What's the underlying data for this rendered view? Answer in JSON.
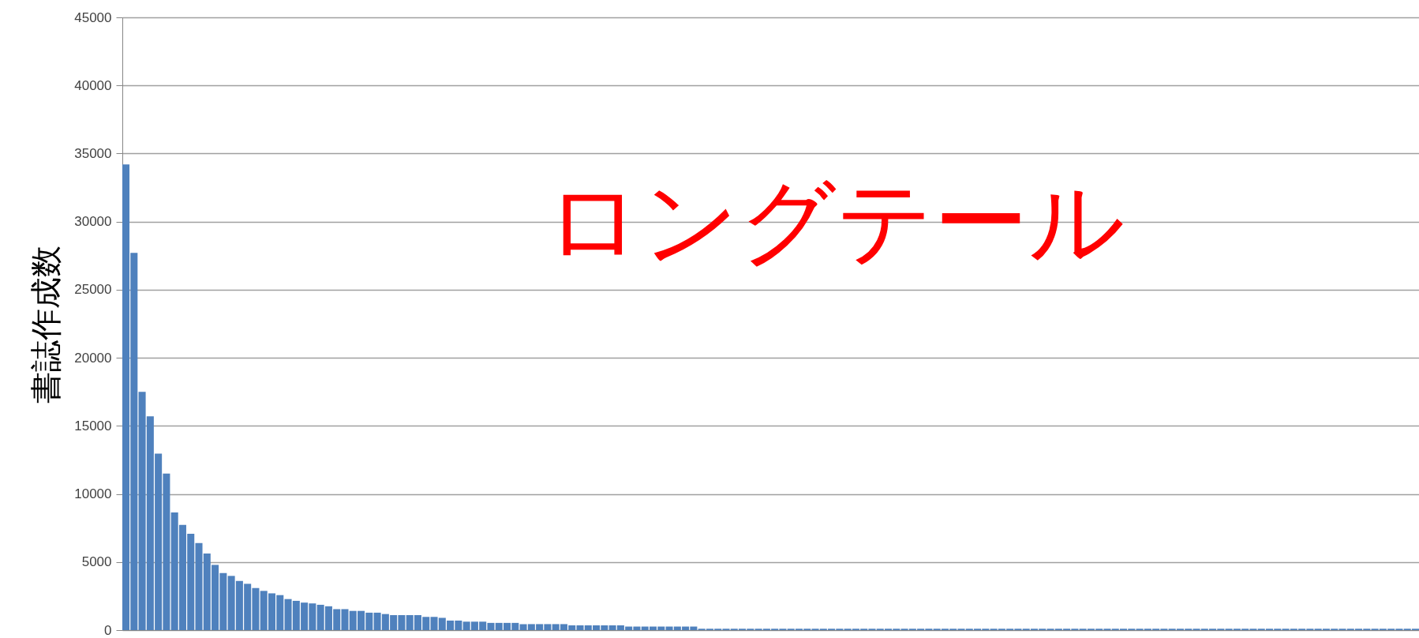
{
  "chart_data": {
    "type": "bar",
    "ylabel": "書誌作成数",
    "annotations": [
      "ロングテール"
    ],
    "categories": [
      null,
      null,
      null,
      null,
      null,
      null,
      null,
      null,
      null,
      null,
      null,
      null,
      null,
      null,
      null,
      null,
      null,
      null,
      null,
      null,
      null,
      null,
      null,
      null,
      null,
      null,
      null,
      null,
      null,
      null,
      null,
      null,
      null,
      null,
      null,
      null,
      null,
      null,
      null,
      null,
      null,
      null,
      null,
      null,
      null,
      null,
      null,
      null,
      null,
      null,
      null,
      null,
      null,
      null,
      null,
      null,
      null,
      null,
      null,
      null,
      null,
      null,
      null,
      null,
      null,
      null,
      null,
      null,
      null,
      null,
      null,
      null,
      null,
      null,
      null,
      null,
      null,
      null,
      null,
      null,
      null,
      null,
      null,
      null,
      null,
      null,
      null,
      null,
      null,
      null,
      null,
      null,
      null,
      null,
      null,
      null,
      null,
      null,
      null,
      null,
      null,
      null,
      null,
      null,
      null,
      null,
      null,
      null,
      null,
      null,
      null,
      null,
      null,
      null,
      null,
      null,
      null,
      null,
      null,
      null,
      null,
      null,
      null,
      null,
      null,
      null,
      null,
      null,
      null,
      null,
      null,
      null,
      null,
      null,
      null,
      null,
      null,
      null,
      null,
      null,
      null,
      null,
      null,
      null,
      null,
      null,
      null,
      null,
      null,
      null,
      null,
      null,
      null,
      null,
      null,
      null,
      null,
      null,
      null,
      null
    ],
    "values": [
      34200,
      27700,
      17500,
      15700,
      12960,
      11500,
      8640,
      7720,
      7070,
      6400,
      5630,
      4790,
      4190,
      3980,
      3610,
      3400,
      3090,
      2880,
      2700,
      2570,
      2280,
      2150,
      2020,
      1960,
      1860,
      1750,
      1540,
      1540,
      1410,
      1410,
      1280,
      1280,
      1180,
      1100,
      1100,
      1100,
      1100,
      970,
      970,
      900,
      700,
      700,
      620,
      620,
      620,
      530,
      530,
      530,
      530,
      440,
      440,
      440,
      440,
      440,
      440,
      350,
      350,
      350,
      350,
      350,
      350,
      350,
      260,
      260,
      260,
      260,
      260,
      260,
      260,
      260,
      260,
      100,
      100,
      100,
      100,
      100,
      100,
      100,
      100,
      100,
      100,
      100,
      100,
      100,
      100,
      100,
      100,
      100,
      100,
      100,
      100,
      100,
      100,
      100,
      100,
      100,
      100,
      100,
      100,
      100,
      100,
      100,
      100,
      100,
      100,
      100,
      100,
      100,
      100,
      100,
      100,
      100,
      100,
      100,
      100,
      100,
      100,
      100,
      100,
      100,
      100,
      100,
      100,
      100,
      100,
      100,
      100,
      100,
      100,
      100,
      100,
      100,
      100,
      100,
      100,
      100,
      100,
      100,
      100,
      100,
      100,
      100,
      100,
      100,
      100,
      100,
      100,
      100,
      100,
      100,
      100,
      100,
      100,
      100,
      100,
      100,
      100,
      100,
      100,
      100
    ],
    "color": "#4f81bd",
    "ylim": [
      0,
      45000
    ],
    "yticks": [
      0,
      5000,
      10000,
      15000,
      20000,
      25000,
      30000,
      35000,
      40000,
      45000
    ],
    "grid": "y",
    "tick_labels": "y"
  }
}
